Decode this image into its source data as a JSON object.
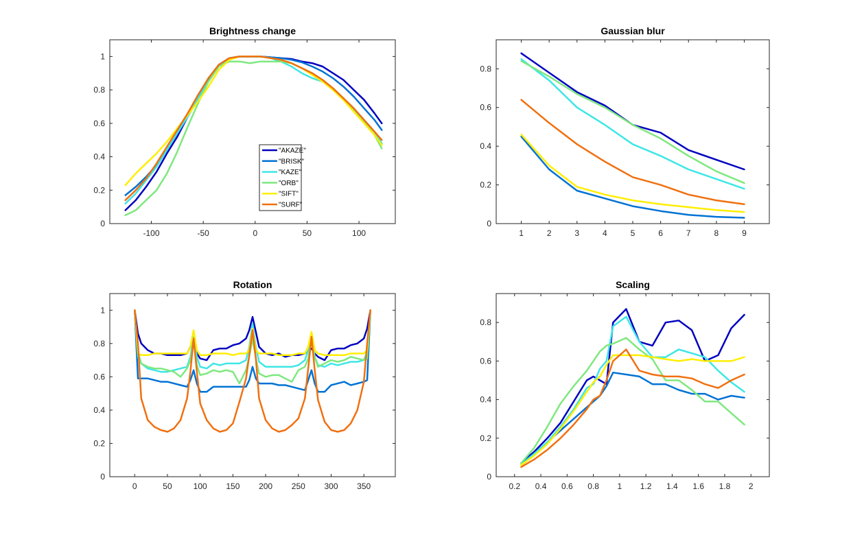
{
  "chart_data": [
    {
      "type": "line",
      "title": "Brightness change",
      "xlim": [
        -140,
        135
      ],
      "ylim": [
        0,
        1.1
      ],
      "xticks": [
        -100,
        -50,
        0,
        50,
        100
      ],
      "yticks": [
        0,
        0.2,
        0.4,
        0.6,
        0.8,
        1
      ],
      "grid": false,
      "legend": "inside-lower-right",
      "x": [
        -125,
        -115,
        -105,
        -95,
        -85,
        -75,
        -65,
        -55,
        -45,
        -35,
        -25,
        -15,
        -5,
        5,
        15,
        25,
        35,
        45,
        55,
        65,
        75,
        85,
        95,
        105,
        115,
        122
      ],
      "series": [
        {
          "name": "\"AKAZE\"",
          "color": "#0000c0",
          "values": [
            0.08,
            0.14,
            0.22,
            0.31,
            0.42,
            0.52,
            0.64,
            0.75,
            0.86,
            0.95,
            0.99,
            1.0,
            1.0,
            1.0,
            0.995,
            0.99,
            0.985,
            0.97,
            0.96,
            0.94,
            0.9,
            0.86,
            0.8,
            0.74,
            0.66,
            0.6
          ]
        },
        {
          "name": "\"BRISK\"",
          "color": "#0072d4",
          "values": [
            0.17,
            0.22,
            0.28,
            0.35,
            0.44,
            0.54,
            0.65,
            0.76,
            0.87,
            0.95,
            0.99,
            1.0,
            1.0,
            1.0,
            0.995,
            0.99,
            0.98,
            0.965,
            0.94,
            0.91,
            0.87,
            0.82,
            0.76,
            0.69,
            0.62,
            0.56
          ]
        },
        {
          "name": "\"KAZE\"",
          "color": "#3ee6e6",
          "values": [
            0.12,
            0.18,
            0.26,
            0.34,
            0.44,
            0.54,
            0.64,
            0.75,
            0.85,
            0.94,
            0.99,
            1.0,
            1.0,
            1.0,
            0.99,
            0.97,
            0.94,
            0.9,
            0.87,
            0.85,
            0.81,
            0.75,
            0.69,
            0.62,
            0.55,
            0.48
          ]
        },
        {
          "name": "\"ORB\"",
          "color": "#7ee87e",
          "values": [
            0.05,
            0.08,
            0.14,
            0.2,
            0.3,
            0.43,
            0.58,
            0.72,
            0.85,
            0.94,
            0.97,
            0.97,
            0.96,
            0.97,
            0.97,
            0.97,
            0.96,
            0.93,
            0.9,
            0.86,
            0.81,
            0.75,
            0.68,
            0.61,
            0.53,
            0.45
          ]
        },
        {
          "name": "\"SIFT\"",
          "color": "#ffee00",
          "values": [
            0.23,
            0.3,
            0.36,
            0.42,
            0.49,
            0.57,
            0.65,
            0.73,
            0.82,
            0.92,
            0.98,
            1.0,
            1.0,
            1.0,
            0.99,
            0.98,
            0.96,
            0.93,
            0.89,
            0.85,
            0.8,
            0.74,
            0.67,
            0.6,
            0.53,
            0.47
          ]
        },
        {
          "name": "\"SURF\"",
          "color": "#f07010",
          "values": [
            0.14,
            0.2,
            0.27,
            0.36,
            0.46,
            0.56,
            0.66,
            0.77,
            0.87,
            0.95,
            0.99,
            1.0,
            1.0,
            1.0,
            0.99,
            0.98,
            0.96,
            0.93,
            0.9,
            0.86,
            0.81,
            0.75,
            0.69,
            0.62,
            0.55,
            0.5
          ]
        }
      ]
    },
    {
      "type": "line",
      "title": "Gaussian blur",
      "xlim": [
        0.1,
        9.9
      ],
      "ylim": [
        0,
        0.95
      ],
      "xticks": [
        1,
        2,
        3,
        4,
        5,
        6,
        7,
        8,
        9
      ],
      "yticks": [
        0,
        0.2,
        0.4,
        0.6,
        0.8
      ],
      "grid": false,
      "x": [
        1,
        2,
        3,
        4,
        5,
        6,
        7,
        8,
        9
      ],
      "series": [
        {
          "name": "\"AKAZE\"",
          "color": "#0000c0",
          "values": [
            0.88,
            0.78,
            0.68,
            0.61,
            0.51,
            0.47,
            0.38,
            0.33,
            0.28
          ]
        },
        {
          "name": "\"BRISK\"",
          "color": "#0072d4",
          "values": [
            0.45,
            0.28,
            0.17,
            0.13,
            0.09,
            0.065,
            0.045,
            0.035,
            0.03
          ]
        },
        {
          "name": "\"KAZE\"",
          "color": "#3ee6e6",
          "values": [
            0.85,
            0.74,
            0.6,
            0.51,
            0.41,
            0.35,
            0.28,
            0.23,
            0.18
          ]
        },
        {
          "name": "\"ORB\"",
          "color": "#7ee87e",
          "values": [
            0.84,
            0.76,
            0.67,
            0.6,
            0.51,
            0.44,
            0.35,
            0.27,
            0.21
          ]
        },
        {
          "name": "\"SIFT\"",
          "color": "#ffee00",
          "values": [
            0.46,
            0.3,
            0.19,
            0.15,
            0.12,
            0.1,
            0.085,
            0.07,
            0.06
          ]
        },
        {
          "name": "\"SURF\"",
          "color": "#f07010",
          "values": [
            0.64,
            0.52,
            0.41,
            0.32,
            0.24,
            0.2,
            0.15,
            0.12,
            0.1
          ]
        }
      ]
    },
    {
      "type": "line",
      "title": "Rotation",
      "xlim": [
        -38,
        398
      ],
      "ylim": [
        0,
        1.1
      ],
      "xticks": [
        0,
        50,
        100,
        150,
        200,
        250,
        300,
        350
      ],
      "yticks": [
        0,
        0.2,
        0.4,
        0.6,
        0.8,
        1
      ],
      "grid": false,
      "x": [
        0,
        5,
        10,
        20,
        30,
        40,
        50,
        60,
        70,
        80,
        85,
        90,
        95,
        100,
        110,
        120,
        130,
        140,
        150,
        160,
        170,
        175,
        180,
        185,
        190,
        200,
        210,
        220,
        230,
        240,
        250,
        260,
        265,
        270,
        275,
        280,
        290,
        300,
        310,
        320,
        330,
        340,
        350,
        355,
        360
      ],
      "series": [
        {
          "name": "\"AKAZE\"",
          "color": "#0000c0",
          "values": [
            1.0,
            0.86,
            0.8,
            0.76,
            0.74,
            0.74,
            0.73,
            0.73,
            0.73,
            0.74,
            0.78,
            0.84,
            0.74,
            0.71,
            0.7,
            0.76,
            0.77,
            0.77,
            0.79,
            0.8,
            0.83,
            0.88,
            0.96,
            0.87,
            0.78,
            0.74,
            0.73,
            0.74,
            0.72,
            0.73,
            0.73,
            0.74,
            0.76,
            0.77,
            0.74,
            0.72,
            0.7,
            0.76,
            0.77,
            0.77,
            0.79,
            0.8,
            0.83,
            0.89,
            1.0
          ]
        },
        {
          "name": "\"BRISK\"",
          "color": "#0072d4",
          "values": [
            1.0,
            0.59,
            0.59,
            0.59,
            0.58,
            0.57,
            0.57,
            0.56,
            0.55,
            0.54,
            0.58,
            0.64,
            0.56,
            0.51,
            0.51,
            0.54,
            0.54,
            0.54,
            0.54,
            0.54,
            0.54,
            0.58,
            0.66,
            0.59,
            0.56,
            0.56,
            0.56,
            0.55,
            0.55,
            0.54,
            0.53,
            0.52,
            0.58,
            0.64,
            0.56,
            0.51,
            0.51,
            0.55,
            0.56,
            0.57,
            0.55,
            0.56,
            0.57,
            0.58,
            1.0
          ]
        },
        {
          "name": "\"KAZE\"",
          "color": "#3ee6e6",
          "values": [
            1.0,
            0.72,
            0.68,
            0.65,
            0.64,
            0.63,
            0.63,
            0.64,
            0.65,
            0.66,
            0.72,
            0.84,
            0.72,
            0.66,
            0.65,
            0.68,
            0.67,
            0.68,
            0.68,
            0.68,
            0.7,
            0.78,
            0.92,
            0.78,
            0.69,
            0.66,
            0.66,
            0.66,
            0.66,
            0.66,
            0.67,
            0.7,
            0.76,
            0.84,
            0.72,
            0.67,
            0.66,
            0.68,
            0.67,
            0.68,
            0.69,
            0.69,
            0.7,
            0.75,
            1.0
          ]
        },
        {
          "name": "\"ORB\"",
          "color": "#7ee87e",
          "values": [
            1.0,
            0.75,
            0.68,
            0.66,
            0.65,
            0.65,
            0.64,
            0.63,
            0.6,
            0.65,
            0.7,
            0.82,
            0.67,
            0.61,
            0.62,
            0.64,
            0.63,
            0.64,
            0.63,
            0.56,
            0.64,
            0.72,
            0.83,
            0.71,
            0.62,
            0.6,
            0.61,
            0.61,
            0.59,
            0.57,
            0.64,
            0.66,
            0.71,
            0.84,
            0.72,
            0.66,
            0.68,
            0.7,
            0.69,
            0.7,
            0.72,
            0.71,
            0.7,
            0.71,
            1.0
          ]
        },
        {
          "name": "\"SIFT\"",
          "color": "#ffee00",
          "values": [
            1.0,
            0.74,
            0.73,
            0.73,
            0.74,
            0.74,
            0.74,
            0.74,
            0.74,
            0.74,
            0.78,
            0.88,
            0.76,
            0.73,
            0.73,
            0.74,
            0.74,
            0.74,
            0.73,
            0.74,
            0.74,
            0.76,
            0.89,
            0.76,
            0.74,
            0.74,
            0.74,
            0.73,
            0.73,
            0.73,
            0.74,
            0.74,
            0.78,
            0.87,
            0.76,
            0.74,
            0.73,
            0.73,
            0.73,
            0.73,
            0.74,
            0.74,
            0.74,
            0.76,
            1.0
          ]
        },
        {
          "name": "\"SURF\"",
          "color": "#f07010",
          "values": [
            1.0,
            0.8,
            0.47,
            0.34,
            0.3,
            0.28,
            0.27,
            0.29,
            0.34,
            0.47,
            0.63,
            0.83,
            0.63,
            0.44,
            0.34,
            0.29,
            0.27,
            0.28,
            0.32,
            0.45,
            0.59,
            0.73,
            0.88,
            0.71,
            0.47,
            0.34,
            0.29,
            0.27,
            0.28,
            0.31,
            0.35,
            0.47,
            0.65,
            0.84,
            0.64,
            0.46,
            0.33,
            0.28,
            0.27,
            0.28,
            0.32,
            0.4,
            0.57,
            0.8,
            1.0
          ]
        }
      ]
    },
    {
      "type": "line",
      "title": "Scaling",
      "xlim": [
        0.06,
        2.14
      ],
      "ylim": [
        0,
        0.95
      ],
      "xticks": [
        0.2,
        0.4,
        0.6,
        0.8,
        1,
        1.2,
        1.4,
        1.6,
        1.8,
        2
      ],
      "yticks": [
        0,
        0.2,
        0.4,
        0.6,
        0.8
      ],
      "grid": false,
      "x": [
        0.25,
        0.35,
        0.45,
        0.55,
        0.65,
        0.75,
        0.8,
        0.85,
        0.9,
        0.95,
        1.05,
        1.15,
        1.25,
        1.35,
        1.45,
        1.55,
        1.65,
        1.75,
        1.85,
        1.95
      ],
      "series": [
        {
          "name": "\"AKAZE\"",
          "color": "#0000c0",
          "values": [
            0.07,
            0.13,
            0.2,
            0.28,
            0.39,
            0.5,
            0.52,
            0.5,
            0.48,
            0.8,
            0.87,
            0.7,
            0.68,
            0.8,
            0.81,
            0.76,
            0.6,
            0.63,
            0.77,
            0.84
          ]
        },
        {
          "name": "\"BRISK\"",
          "color": "#0072d4",
          "values": [
            0.07,
            0.12,
            0.18,
            0.24,
            0.3,
            0.36,
            0.39,
            0.42,
            0.47,
            0.54,
            0.53,
            0.52,
            0.48,
            0.48,
            0.45,
            0.43,
            0.43,
            0.4,
            0.42,
            0.41
          ]
        },
        {
          "name": "\"KAZE\"",
          "color": "#3ee6e6",
          "values": [
            0.06,
            0.12,
            0.18,
            0.26,
            0.35,
            0.46,
            0.48,
            0.56,
            0.6,
            0.78,
            0.83,
            0.7,
            0.62,
            0.62,
            0.66,
            0.64,
            0.62,
            0.55,
            0.49,
            0.44
          ]
        },
        {
          "name": "\"ORB\"",
          "color": "#7ee87e",
          "values": [
            0.07,
            0.15,
            0.26,
            0.38,
            0.47,
            0.55,
            0.6,
            0.65,
            0.68,
            0.69,
            0.72,
            0.66,
            0.61,
            0.5,
            0.5,
            0.45,
            0.39,
            0.39,
            0.33,
            0.27
          ]
        },
        {
          "name": "\"SIFT\"",
          "color": "#ffee00",
          "values": [
            0.06,
            0.11,
            0.17,
            0.25,
            0.34,
            0.44,
            0.49,
            0.52,
            0.58,
            0.63,
            0.63,
            0.63,
            0.62,
            0.61,
            0.6,
            0.61,
            0.6,
            0.6,
            0.6,
            0.62
          ]
        },
        {
          "name": "\"SURF\"",
          "color": "#f07010",
          "values": [
            0.05,
            0.09,
            0.14,
            0.2,
            0.27,
            0.35,
            0.4,
            0.42,
            0.5,
            0.6,
            0.66,
            0.55,
            0.53,
            0.52,
            0.52,
            0.51,
            0.48,
            0.46,
            0.5,
            0.53
          ]
        }
      ]
    }
  ]
}
